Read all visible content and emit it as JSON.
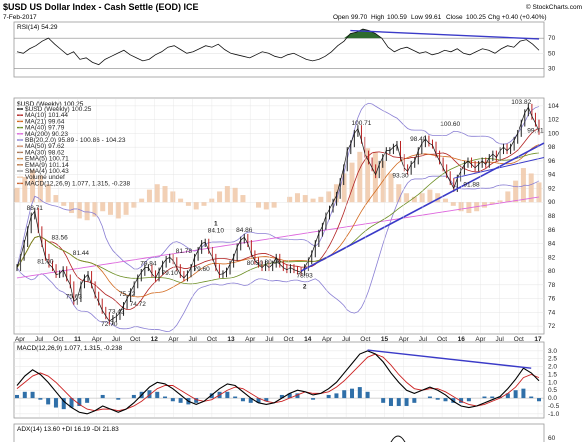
{
  "header": {
    "title": "$USD US Dollar Index - Cash Settle (EOD) ICE",
    "date": "7-Feb-2017",
    "site": "© StockCharts.com",
    "open_label": "Open",
    "open": "99.70",
    "high_label": "High",
    "high": "100.59",
    "low_label": "Low",
    "low": "99.61",
    "close_label": "Close",
    "close": "100.25",
    "change": "Chg +0.40 (+0.40%)"
  },
  "colors": {
    "price": "#111111",
    "ma10": "#b22222",
    "ma21": "#d2691e",
    "ma40": "#6b8e23",
    "ma200": "#dd66dd",
    "bb": "#8a7fd4",
    "volume": "#f0c8a8",
    "rsi_fill": "#2e6b2e",
    "trend": "#3a3ac8",
    "macd": "#000000",
    "signal": "#cc2222",
    "hist": "#2f6fa8",
    "grid": "#e4e4e4",
    "ref": "#888888"
  },
  "chart_data": [
    {
      "type": "line",
      "panel": "RSI",
      "title": "RSI(14) 54.29",
      "ylim": [
        20,
        90
      ],
      "yticks": [
        "70",
        "50",
        "30"
      ],
      "ref_levels": [
        70,
        30
      ],
      "series": [
        {
          "name": "RSI(14) 54.29",
          "values": [
            52,
            50,
            56,
            60,
            66,
            70,
            62,
            55,
            48,
            52,
            42,
            44,
            38,
            35,
            42,
            46,
            50,
            54,
            48,
            44,
            40,
            42,
            48,
            52,
            58,
            60,
            55,
            50,
            52,
            56,
            60,
            58,
            62,
            55,
            50,
            48,
            46,
            44,
            48,
            52,
            50,
            46,
            44,
            48,
            50,
            46,
            42,
            40,
            42,
            46,
            52,
            60,
            66,
            76,
            78,
            82,
            80,
            76,
            70,
            58,
            52,
            56,
            58,
            54,
            50,
            52,
            48,
            50,
            54,
            52,
            56,
            50,
            48,
            52,
            56,
            54,
            50,
            56,
            60,
            58,
            66,
            68,
            62,
            54
          ]
        }
      ],
      "trendline": {
        "from": [
          53,
          80
        ],
        "to": [
          83,
          69
        ]
      }
    },
    {
      "type": "line",
      "panel": "Price",
      "title": "$USD (Weekly) 100.25",
      "ylim": [
        71,
        105
      ],
      "yticks": [
        "104",
        "102",
        "100",
        "98",
        "96",
        "94",
        "92",
        "90",
        "88",
        "86",
        "84",
        "82",
        "80",
        "78",
        "76",
        "74",
        "72"
      ],
      "x_labels": [
        "Apr",
        "Jul",
        "Oct",
        "11",
        "Apr",
        "Jul",
        "Oct",
        "12",
        "Apr",
        "Jul",
        "Oct",
        "13",
        "Apr",
        "Jul",
        "Oct",
        "14",
        "Apr",
        "Jul",
        "Oct",
        "15",
        "Apr",
        "Jul",
        "Oct",
        "16",
        "Apr",
        "Jul",
        "Oct",
        "17"
      ],
      "legend": [
        {
          "label": "$USD (Weekly) 100.25",
          "color": "#111111"
        },
        {
          "label": "MA(10) 101.44",
          "color": "#b22222"
        },
        {
          "label": "MA(21) 99.64",
          "color": "#d2691e"
        },
        {
          "label": "MA(40) 97.79",
          "color": "#6b8e23"
        },
        {
          "label": "MA(200) 90.23",
          "color": "#dd66dd"
        },
        {
          "label": "BB(20,2.0) 95.89 - 100.86 - 104.23",
          "color": "#8a7fd4"
        },
        {
          "label": "MA(50) 97.62",
          "color": "#cc8866"
        },
        {
          "label": "MA(30) 98.62",
          "color": "#aa7755"
        },
        {
          "label": "EMA(5) 100.71",
          "color": "#cc8844"
        },
        {
          "label": "EMA(9) 101.14",
          "color": "#bb7744"
        },
        {
          "label": "SMA(4) 100.43",
          "color": "#999999"
        },
        {
          "label": "Volume undef",
          "color": "#f0c8a8"
        },
        {
          "label": "MACD(12,26,9) 1.077, 1.315, -0.238",
          "color": "#cc6633"
        }
      ],
      "series": [
        {
          "name": "$USD (Weekly) 100.25",
          "values": [
            80.5,
            82,
            84,
            86,
            88,
            88.7,
            86,
            84,
            82,
            81,
            80.5,
            79.5,
            79.6,
            80.2,
            79,
            78,
            75.6,
            76,
            78,
            79,
            79.5,
            78,
            76.5,
            75.5,
            74.3,
            73.5,
            72.7,
            73.1,
            73.4,
            74,
            75,
            76,
            77,
            78,
            79,
            79.8,
            80.5,
            80.5,
            79.6,
            79,
            80,
            81,
            81.7,
            82,
            81.5,
            80.5,
            79.5,
            79,
            79.6,
            80.5,
            82,
            83,
            84,
            84.2,
            83,
            82,
            80.5,
            79.5,
            79.6,
            80,
            81,
            82,
            83.5,
            84.5,
            84.9,
            84,
            82.5,
            81.5,
            81,
            80.5,
            81,
            80.5,
            81,
            82,
            81,
            80.5,
            80.2,
            80.5,
            80.2,
            80,
            79.8,
            80.5,
            81.5,
            82.5,
            84,
            85.5,
            86.5,
            88,
            89,
            90,
            91,
            93,
            95,
            97.5,
            98.5,
            100,
            100.7,
            99,
            97,
            96,
            95,
            94,
            95.5,
            96.5,
            97.5,
            97.5,
            98,
            98.4,
            96.5,
            95,
            94.5,
            95.5,
            96,
            97.5,
            98.5,
            99.2,
            98.6,
            98.3,
            97,
            96,
            95,
            94,
            93,
            92,
            93.5,
            94.5,
            95.5,
            96,
            95.5,
            95,
            95.5,
            96,
            95.5,
            96.5,
            97,
            96.5,
            97.5,
            98,
            97.5,
            98,
            99,
            100,
            101.5,
            103,
            103.8,
            102.5,
            101.5,
            100.3
          ]
        }
      ],
      "annotations": [
        "88.71",
        "83.56",
        "81.44",
        "81.00",
        "75.63",
        "72.70",
        "73.42",
        "74.72",
        "75.72",
        "79.84",
        "79.10",
        "81.78",
        "79.60",
        "84.10",
        "84.86",
        "80.50",
        "80.90",
        "78.93",
        "100.71",
        "93.30",
        "98.40",
        "100.60",
        "91.88",
        "103.82",
        "99.71",
        "1",
        "2"
      ]
    },
    {
      "type": "line",
      "panel": "MACD",
      "title": "MACD(12,26,9) 1.077, 1.315, -0.238",
      "ylim": [
        -1.2,
        3.5
      ],
      "yticks": [
        "3.0",
        "2.5",
        "2.0",
        "1.5",
        "1.0",
        "0.5",
        "0.0",
        "-0.5",
        "-1.0"
      ],
      "series": [
        {
          "name": "MACD(12,26,9) 1.077",
          "values": [
            0.8,
            1.4,
            1.8,
            1.5,
            1.0,
            0.4,
            -0.2,
            -0.6,
            -0.9,
            -1.0,
            -0.8,
            -0.5,
            -0.7,
            -0.9,
            -0.7,
            -0.3,
            0.2,
            0.7,
            1.0,
            0.9,
            0.6,
            0.2,
            -0.2,
            -0.4,
            -0.2,
            0.2,
            0.6,
            0.9,
            0.8,
            0.4,
            0.0,
            -0.3,
            -0.4,
            -0.3,
            0.0,
            0.3,
            0.5,
            0.4,
            0.2,
            0.3,
            0.6,
            1.0,
            1.6,
            2.2,
            2.8,
            3.0,
            2.8,
            2.3,
            1.6,
            1.0,
            0.5,
            0.3,
            0.5,
            0.7,
            0.5,
            0.2,
            -0.2,
            -0.5,
            -0.6,
            -0.5,
            -0.3,
            -0.1,
            0.1,
            0.6,
            1.2,
            1.9,
            1.6,
            1.1
          ]
        },
        {
          "name": "1.315",
          "values": [
            0.6,
            1.0,
            1.4,
            1.6,
            1.4,
            1.0,
            0.5,
            0.0,
            -0.4,
            -0.7,
            -0.8,
            -0.7,
            -0.7,
            -0.8,
            -0.7,
            -0.5,
            -0.2,
            0.2,
            0.6,
            0.8,
            0.8,
            0.5,
            0.2,
            -0.1,
            -0.2,
            -0.1,
            0.2,
            0.5,
            0.7,
            0.6,
            0.3,
            0.0,
            -0.2,
            -0.3,
            -0.2,
            0.0,
            0.2,
            0.4,
            0.3,
            0.3,
            0.4,
            0.7,
            1.1,
            1.6,
            2.1,
            2.6,
            2.8,
            2.6,
            2.1,
            1.5,
            1.0,
            0.6,
            0.5,
            0.6,
            0.6,
            0.4,
            0.1,
            -0.2,
            -0.4,
            -0.5,
            -0.4,
            -0.2,
            0.0,
            0.3,
            0.7,
            1.3,
            1.5,
            1.3
          ]
        },
        {
          "name": "-0.238",
          "values": [
            0.2,
            0.4,
            0.4,
            -0.1,
            -0.4,
            -0.6,
            -0.7,
            -0.6,
            -0.5,
            -0.3,
            0.0,
            0.2,
            0.0,
            -0.1,
            0.0,
            0.2,
            0.4,
            0.5,
            0.4,
            0.1,
            -0.2,
            -0.3,
            -0.4,
            -0.3,
            0.0,
            0.3,
            0.4,
            0.4,
            0.1,
            -0.2,
            -0.3,
            -0.3,
            -0.2,
            0.0,
            0.2,
            0.3,
            0.3,
            0.0,
            -0.1,
            0.0,
            0.2,
            0.3,
            0.5,
            0.6,
            0.7,
            0.4,
            0.0,
            -0.3,
            -0.5,
            -0.5,
            -0.5,
            -0.3,
            0.0,
            0.1,
            -0.1,
            -0.2,
            -0.3,
            -0.3,
            -0.2,
            0.0,
            0.1,
            0.1,
            0.1,
            0.3,
            0.5,
            0.6,
            0.1,
            -0.2
          ]
        }
      ],
      "trendline": {
        "from": [
          45,
          3.05
        ],
        "to": [
          66,
          1.9
        ]
      }
    },
    {
      "type": "line",
      "panel": "ADX",
      "title": "ADX(14) 13.60  +DI 16.19  -DI 21.83",
      "yticks": [
        "60"
      ]
    }
  ]
}
